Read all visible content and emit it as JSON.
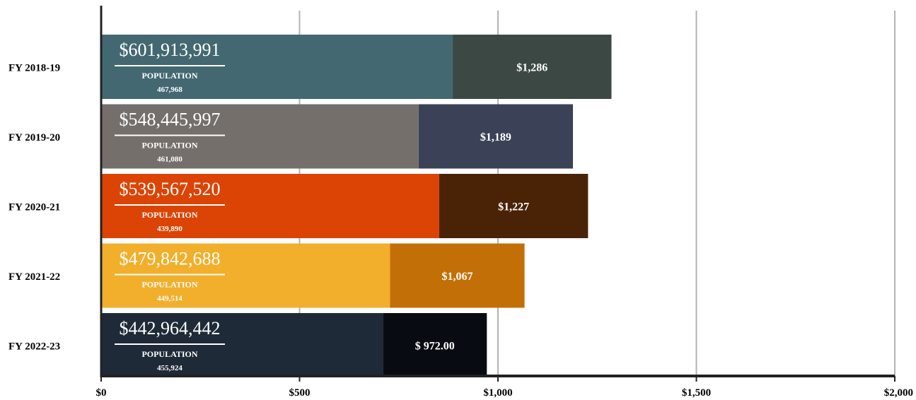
{
  "chart_data": {
    "type": "bar",
    "orientation": "horizontal",
    "stacked": true,
    "xlim": [
      0,
      2000
    ],
    "x_ticks": [
      {
        "value": 0,
        "label": "$0"
      },
      {
        "value": 500,
        "label": "$500"
      },
      {
        "value": 1000,
        "label": "$1,000"
      },
      {
        "value": 1500,
        "label": "$1,500"
      },
      {
        "value": 2000,
        "label": "$2,000"
      }
    ],
    "grid": true,
    "categories": [
      "FY 2018-19",
      "FY 2019-20",
      "FY 2020-21",
      "FY 2021-22",
      "FY 2022-23"
    ],
    "population_label": "POPULATION",
    "bars": [
      {
        "category": "FY 2018-19",
        "total_label": "$601,913,991",
        "population": "467,968",
        "per_capita_label": "$1,286",
        "per_capita": 1286,
        "split": 886,
        "color_main": "#436871",
        "color_end": "#3c4843"
      },
      {
        "category": "FY 2019-20",
        "total_label": "$548,445,997",
        "population": "461,080",
        "per_capita_label": "$1,189",
        "per_capita": 1189,
        "split": 800,
        "color_main": "#756f6b",
        "color_end": "#3b4257"
      },
      {
        "category": "FY 2020-21",
        "total_label": "$539,567,520",
        "population": "439,890",
        "per_capita_label": "$1,227",
        "per_capita": 1227,
        "split": 852,
        "color_main": "#db4405",
        "color_end": "#4a2206"
      },
      {
        "category": "FY 2021-22",
        "total_label": "$479,842,688",
        "population": "449,514",
        "per_capita_label": "$1,067",
        "per_capita": 1067,
        "split": 728,
        "color_main": "#f1af2c",
        "color_end": "#c36f08"
      },
      {
        "category": "FY 2022-23",
        "total_label": "$442,964,442",
        "population": "455,924",
        "per_capita_label": "$ 972.00",
        "per_capita": 972,
        "split": 710,
        "color_main": "#1e2a37",
        "color_end": "#080c12"
      }
    ]
  }
}
